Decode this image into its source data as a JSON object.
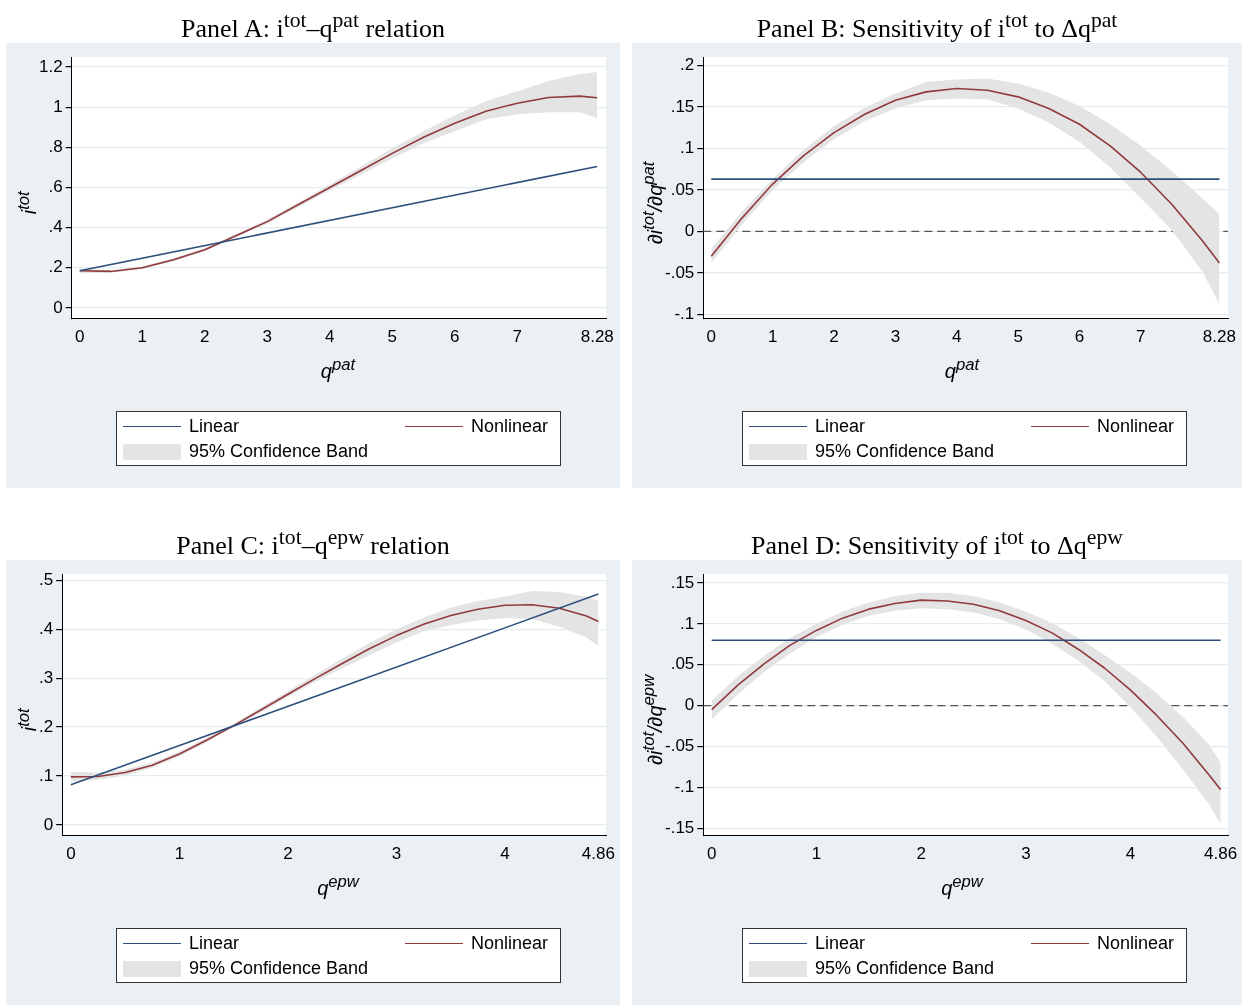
{
  "chart_data": [
    {
      "type": "line",
      "title": "Panel A: i$^{tot}$–q$^{pat}$ relation",
      "xlabel": "q$^{pat}$",
      "ylabel": "i$^{tot}$",
      "annotations": [
        "95% Confidence Band"
      ],
      "grid": "y",
      "legend": "bottom",
      "xlim": [
        -0.13,
        8.42
      ],
      "ylim": [
        -0.053,
        1.25
      ],
      "xticks": [
        0,
        1,
        2,
        3,
        4,
        5,
        6,
        7,
        8.28
      ],
      "yticks": [
        0,
        {
          "value": 0.2,
          "label": ".2"
        },
        {
          "value": 0.4,
          "label": ".4"
        },
        {
          "value": 0.6,
          "label": ".6"
        },
        {
          "value": 0.8,
          "label": ".8"
        },
        1,
        1.2
      ],
      "series": [
        {
          "name": "Linear",
          "color": "#2e4f7c",
          "x": [
            0,
            8.28
          ],
          "values": [
            0.185,
            0.705
          ]
        },
        {
          "name": "Nonlinear",
          "color": "#913a3e",
          "x": [
            0,
            0.5,
            1,
            1.5,
            2,
            2.5,
            3,
            3.5,
            4,
            4.5,
            5,
            5.5,
            6,
            6.5,
            7,
            7.5,
            8,
            8.28
          ],
          "values": [
            0.185,
            0.182,
            0.2,
            0.24,
            0.29,
            0.36,
            0.43,
            0.515,
            0.6,
            0.685,
            0.77,
            0.85,
            0.92,
            0.98,
            1.02,
            1.048,
            1.055,
            1.047
          ],
          "lower": [
            0.172,
            0.176,
            0.193,
            0.233,
            0.283,
            0.352,
            0.42,
            0.503,
            0.585,
            0.665,
            0.745,
            0.82,
            0.88,
            0.94,
            0.965,
            0.975,
            0.975,
            0.945
          ],
          "upper": [
            0.195,
            0.189,
            0.207,
            0.247,
            0.297,
            0.368,
            0.44,
            0.527,
            0.615,
            0.705,
            0.795,
            0.88,
            0.96,
            1.03,
            1.08,
            1.13,
            1.165,
            1.175
          ]
        }
      ]
    },
    {
      "type": "line",
      "title": "Panel B: Sensitivity of i$^{tot}$ to Δq$^{pat}$",
      "xlabel": "q$^{pat}$",
      "ylabel": "∂i$^{tot}$/∂q$^{pat}$",
      "annotations": [
        "95% Confidence Band"
      ],
      "grid": "y",
      "legend": "bottom",
      "xlim": [
        -0.13,
        8.42
      ],
      "ylim": [
        -0.105,
        0.21
      ],
      "xticks": [
        0,
        1,
        2,
        3,
        4,
        5,
        6,
        7,
        8.28
      ],
      "yticks": [
        {
          "value": -0.1,
          "label": "-.1"
        },
        {
          "value": -0.05,
          "label": "-.05"
        },
        0,
        {
          "value": 0.05,
          "label": ".05"
        },
        {
          "value": 0.1,
          "label": ".1"
        },
        {
          "value": 0.15,
          "label": ".15"
        },
        {
          "value": 0.2,
          "label": ".2"
        }
      ],
      "ref_lines": [
        {
          "axis": "y",
          "value": 0,
          "color": "#555555",
          "line_style": "dashed"
        }
      ],
      "series": [
        {
          "name": "Linear",
          "color": "#2e4f7c",
          "x": [
            0,
            8.28
          ],
          "values": [
            0.063,
            0.063
          ]
        },
        {
          "name": "Nonlinear",
          "color": "#913a3e",
          "x": [
            0,
            0.5,
            1,
            1.5,
            2,
            2.5,
            3,
            3.5,
            4,
            4.5,
            5,
            5.5,
            6,
            6.5,
            7,
            7.5,
            8,
            8.28
          ],
          "values": [
            -0.03,
            0.016,
            0.057,
            0.091,
            0.119,
            0.141,
            0.158,
            0.168,
            0.172,
            0.17,
            0.162,
            0.148,
            0.129,
            0.103,
            0.071,
            0.033,
            -0.011,
            -0.038
          ],
          "lower": [
            -0.038,
            0.008,
            0.05,
            0.083,
            0.111,
            0.133,
            0.148,
            0.158,
            0.16,
            0.159,
            0.148,
            0.131,
            0.108,
            0.077,
            0.04,
            0.002,
            -0.048,
            -0.088
          ],
          "upper": [
            -0.021,
            0.024,
            0.063,
            0.098,
            0.127,
            0.149,
            0.166,
            0.18,
            0.183,
            0.184,
            0.178,
            0.167,
            0.151,
            0.129,
            0.103,
            0.073,
            0.04,
            0.021
          ]
        }
      ]
    },
    {
      "type": "line",
      "title": "Panel C: i$^{tot}$–q$^{epw}$ relation",
      "xlabel": "q$^{epw}$",
      "ylabel": "i$^{tot}$",
      "annotations": [
        "95% Confidence Band"
      ],
      "grid": "y",
      "legend": "bottom",
      "xlim": [
        -0.08,
        4.93
      ],
      "ylim": [
        -0.022,
        0.513
      ],
      "xticks": [
        0,
        1,
        2,
        3,
        4,
        4.86
      ],
      "yticks": [
        0,
        {
          "value": 0.1,
          "label": ".1"
        },
        {
          "value": 0.2,
          "label": ".2"
        },
        {
          "value": 0.3,
          "label": ".3"
        },
        {
          "value": 0.4,
          "label": ".4"
        },
        {
          "value": 0.5,
          "label": ".5"
        }
      ],
      "series": [
        {
          "name": "Linear",
          "color": "#2e4f7c",
          "x": [
            0,
            4.86
          ],
          "values": [
            0.082,
            0.472
          ]
        },
        {
          "name": "Nonlinear",
          "color": "#913a3e",
          "x": [
            0,
            0.25,
            0.5,
            0.75,
            1,
            1.25,
            1.5,
            1.75,
            2,
            2.25,
            2.5,
            2.75,
            3,
            3.25,
            3.5,
            3.75,
            4,
            4.25,
            4.5,
            4.75,
            4.86
          ],
          "values": [
            0.098,
            0.099,
            0.107,
            0.122,
            0.145,
            0.173,
            0.203,
            0.235,
            0.267,
            0.299,
            0.33,
            0.36,
            0.387,
            0.41,
            0.428,
            0.441,
            0.449,
            0.45,
            0.443,
            0.427,
            0.416
          ],
          "lower": [
            0.088,
            0.092,
            0.101,
            0.117,
            0.14,
            0.169,
            0.2,
            0.23,
            0.262,
            0.292,
            0.32,
            0.347,
            0.373,
            0.396,
            0.408,
            0.418,
            0.423,
            0.421,
            0.405,
            0.383,
            0.366
          ],
          "upper": [
            0.108,
            0.107,
            0.113,
            0.127,
            0.15,
            0.178,
            0.207,
            0.24,
            0.273,
            0.307,
            0.34,
            0.372,
            0.4,
            0.424,
            0.444,
            0.458,
            0.467,
            0.478,
            0.476,
            0.466,
            0.459
          ]
        }
      ]
    },
    {
      "type": "line",
      "title": "Panel D: Sensitivity of i$^{tot}$ to Δq$^{epw}$",
      "xlabel": "q$^{epw}$",
      "ylabel": "∂i$^{tot}$/∂q$^{epw}$",
      "annotations": [
        "95% Confidence Band"
      ],
      "grid": "y",
      "legend": "bottom",
      "xlim": [
        -0.08,
        4.93
      ],
      "ylim": [
        -0.159,
        0.161
      ],
      "xticks": [
        0,
        1,
        2,
        3,
        4,
        4.86
      ],
      "yticks": [
        {
          "value": -0.15,
          "label": "-.15"
        },
        {
          "value": -0.1,
          "label": "-.1"
        },
        {
          "value": -0.05,
          "label": "-.05"
        },
        0,
        {
          "value": 0.05,
          "label": ".05"
        },
        {
          "value": 0.1,
          "label": ".1"
        },
        {
          "value": 0.15,
          "label": ".15"
        }
      ],
      "ref_lines": [
        {
          "axis": "y",
          "value": 0,
          "color": "#555555",
          "line_style": "dashed"
        }
      ],
      "series": [
        {
          "name": "Linear",
          "color": "#2e4f7c",
          "x": [
            0,
            4.86
          ],
          "values": [
            0.08,
            0.08
          ]
        },
        {
          "name": "Nonlinear",
          "color": "#913a3e",
          "x": [
            0,
            0.25,
            0.5,
            0.75,
            1,
            1.25,
            1.5,
            1.75,
            2,
            2.25,
            2.5,
            2.75,
            3,
            3.25,
            3.5,
            3.75,
            4,
            4.25,
            4.5,
            4.75,
            4.86
          ],
          "values": [
            -0.005,
            0.025,
            0.051,
            0.074,
            0.092,
            0.107,
            0.118,
            0.125,
            0.129,
            0.128,
            0.124,
            0.116,
            0.104,
            0.089,
            0.069,
            0.046,
            0.019,
            -0.012,
            -0.046,
            -0.085,
            -0.103
          ],
          "lower": [
            -0.017,
            0.014,
            0.041,
            0.064,
            0.084,
            0.099,
            0.11,
            0.116,
            0.119,
            0.118,
            0.114,
            0.106,
            0.093,
            0.076,
            0.055,
            0.03,
            -0.002,
            -0.038,
            -0.078,
            -0.121,
            -0.145
          ],
          "upper": [
            0.006,
            0.036,
            0.061,
            0.083,
            0.1,
            0.115,
            0.126,
            0.134,
            0.138,
            0.138,
            0.134,
            0.126,
            0.115,
            0.101,
            0.083,
            0.062,
            0.04,
            0.015,
            -0.014,
            -0.048,
            -0.07
          ]
        }
      ]
    }
  ]
}
